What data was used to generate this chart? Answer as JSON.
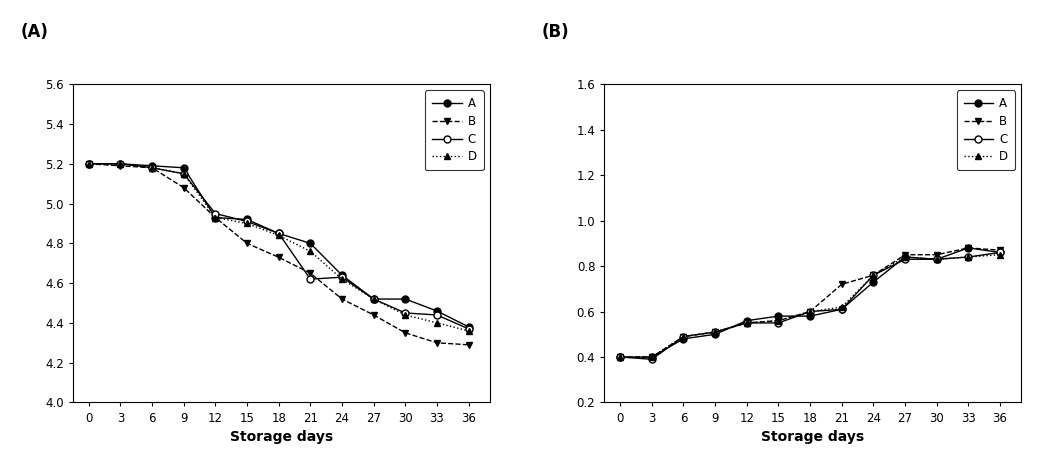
{
  "x": [
    0,
    3,
    6,
    9,
    12,
    15,
    18,
    21,
    24,
    27,
    30,
    33,
    36
  ],
  "panel_A": {
    "title": "(A)",
    "xlabel": "Storage days",
    "ylim": [
      4.0,
      5.6
    ],
    "yticks": [
      4.0,
      4.2,
      4.4,
      4.6,
      4.8,
      5.0,
      5.2,
      5.4,
      5.6
    ],
    "series": {
      "A": [
        5.2,
        5.2,
        5.19,
        5.18,
        4.93,
        4.92,
        4.85,
        4.8,
        4.64,
        4.52,
        4.52,
        4.46,
        4.38
      ],
      "B": [
        5.2,
        5.19,
        5.18,
        5.08,
        4.93,
        4.8,
        4.73,
        4.65,
        4.52,
        4.44,
        4.35,
        4.3,
        4.29
      ],
      "C": [
        5.2,
        5.2,
        5.18,
        5.15,
        4.95,
        4.91,
        4.85,
        4.62,
        4.63,
        4.52,
        4.45,
        4.44,
        4.37
      ],
      "D": [
        5.2,
        5.2,
        5.18,
        5.15,
        4.93,
        4.9,
        4.84,
        4.76,
        4.62,
        4.52,
        4.44,
        4.4,
        4.36
      ]
    }
  },
  "panel_B": {
    "title": "(B)",
    "xlabel": "Storage days",
    "ylim": [
      0.2,
      1.6
    ],
    "yticks": [
      0.2,
      0.4,
      0.6,
      0.8,
      1.0,
      1.2,
      1.4,
      1.6
    ],
    "series": {
      "A": [
        0.4,
        0.4,
        0.48,
        0.5,
        0.56,
        0.58,
        0.58,
        0.61,
        0.73,
        0.84,
        0.83,
        0.88,
        0.86
      ],
      "B": [
        0.4,
        0.4,
        0.49,
        0.51,
        0.55,
        0.56,
        0.6,
        0.72,
        0.76,
        0.85,
        0.85,
        0.88,
        0.87
      ],
      "C": [
        0.4,
        0.39,
        0.49,
        0.51,
        0.55,
        0.55,
        0.6,
        0.61,
        0.76,
        0.83,
        0.83,
        0.84,
        0.86
      ],
      "D": [
        0.4,
        0.4,
        0.49,
        0.51,
        0.55,
        0.56,
        0.6,
        0.62,
        0.76,
        0.84,
        0.83,
        0.84,
        0.85
      ]
    }
  },
  "line_styles": {
    "A": {
      "linestyle": "-",
      "marker": "o",
      "mfc": "black",
      "mec": "black"
    },
    "B": {
      "linestyle": "--",
      "marker": "v",
      "mfc": "black",
      "mec": "black"
    },
    "C": {
      "linestyle": "-",
      "marker": "o",
      "mfc": "white",
      "mec": "black"
    },
    "D": {
      "linestyle": ":",
      "marker": "^",
      "mfc": "black",
      "mec": "black"
    }
  },
  "line_color": "black",
  "linewidth": 1.0,
  "markersize": 5,
  "legend_fontsize": 8.5,
  "tick_fontsize": 8.5,
  "label_fontsize": 10,
  "panel_label_fontsize": 12
}
